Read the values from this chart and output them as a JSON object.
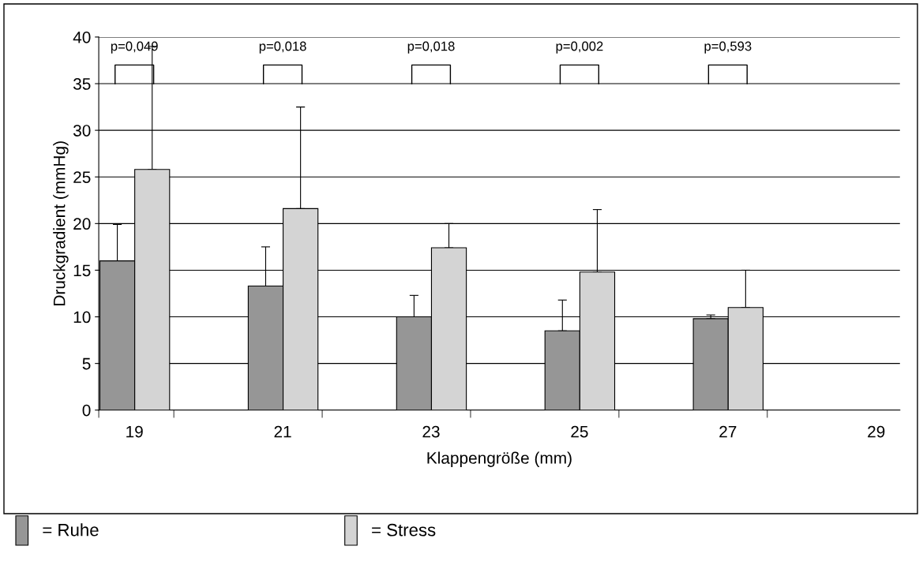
{
  "chart_data": {
    "type": "bar",
    "xlabel": "Klappengröße (mm)",
    "ylabel": "Druckgradient (mmHg)",
    "categories": [
      "19",
      "21",
      "23",
      "25",
      "27",
      "29"
    ],
    "series": [
      {
        "name": "= Ruhe",
        "color": "#969696",
        "values": [
          16,
          13.3,
          10,
          8.5,
          9.8,
          null
        ],
        "errors": [
          [
            16,
            19.9
          ],
          [
            13.3,
            17.5
          ],
          [
            10,
            12.3
          ],
          [
            8.5,
            11.8
          ],
          [
            9.8,
            10.2
          ],
          null
        ]
      },
      {
        "name": "= Stress",
        "color": "#d4d4d4",
        "values": [
          25.8,
          21.6,
          17.4,
          14.8,
          11,
          null
        ],
        "errors": [
          [
            25.8,
            39
          ],
          [
            21.6,
            32.5
          ],
          [
            17.4,
            20
          ],
          [
            14.8,
            21.5
          ],
          [
            11,
            15
          ],
          null
        ]
      }
    ],
    "ylim": [
      0,
      40
    ],
    "yticks": [
      0,
      5,
      10,
      15,
      20,
      25,
      30,
      35,
      40
    ],
    "grid": "y",
    "legend": "bottom left",
    "annotations": [
      "p=0,049",
      "p=0,018",
      "p=0,018",
      "p=0,002",
      "p=0,593"
    ]
  }
}
